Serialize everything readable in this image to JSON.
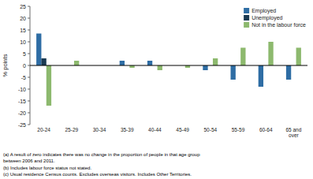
{
  "chart_data": {
    "type": "bar",
    "categories": [
      "20-24",
      "25-29",
      "30-34",
      "35-39",
      "40-44",
      "45-49",
      "50-54",
      "55-59",
      "60-64",
      "65 and\nover"
    ],
    "series": [
      {
        "name": "Employed",
        "color": "#2E6DA4",
        "values": [
          13.5,
          0,
          0,
          2,
          2,
          0,
          -2,
          -6,
          -9,
          -6
        ]
      },
      {
        "name": "Unemployed",
        "color": "#1A3A52",
        "values": [
          3,
          0,
          0,
          0,
          0,
          0,
          0,
          0,
          0,
          0
        ]
      },
      {
        "name": "Not in the labour force",
        "color": "#8DB96E",
        "values": [
          -17,
          2,
          0,
          -1,
          -2,
          -1,
          3,
          7.5,
          10,
          7.5
        ]
      }
    ],
    "ylabel": "% points",
    "ylim": [
      -25,
      25
    ],
    "yticks": [
      -25,
      -20,
      -15,
      -10,
      -5,
      0,
      5,
      10,
      15,
      20,
      25
    ],
    "grid": false,
    "legend": "upper right",
    "annotations": [
      "(a) A result of zero indicates there was no change in the proportion of people in that age group",
      "between 2006 and 2011.",
      "(b) Includes labour force status not stated.",
      "(c) Usual residence Census counts.  Excludes overseas visitors.  Includes Other Territories."
    ]
  }
}
